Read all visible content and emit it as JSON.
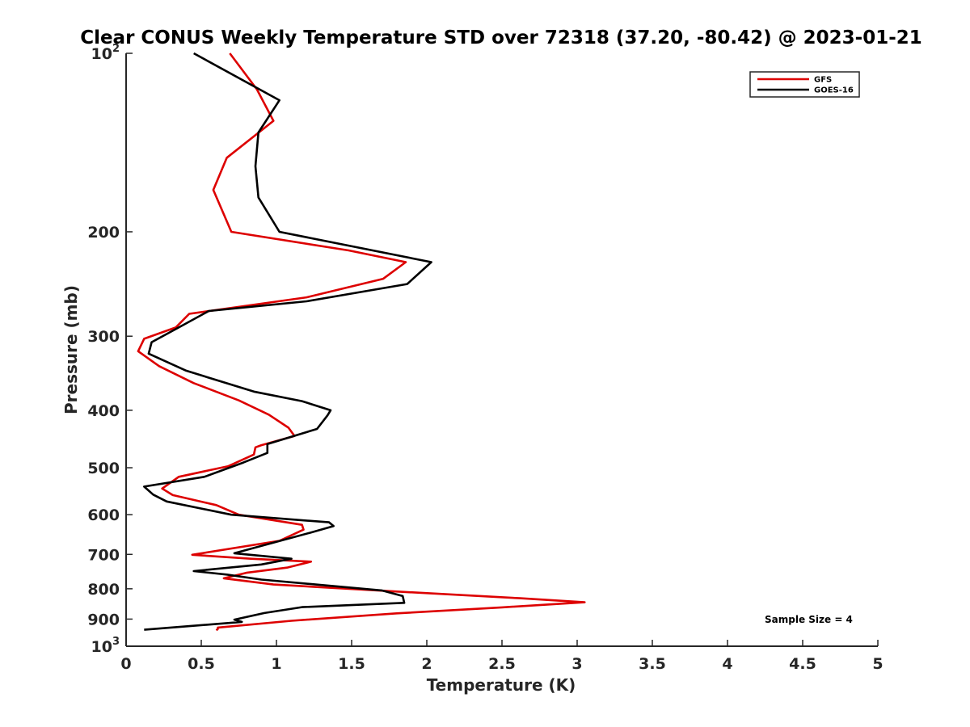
{
  "chart_data": {
    "type": "line",
    "title": "Clear CONUS Weekly Temperature STD over 72318 (37.20, -80.42) @ 2023-01-21",
    "xlabel": "Temperature (K)",
    "ylabel": "Pressure (mb)",
    "xlim": [
      0,
      5
    ],
    "ylim": [
      100,
      1000
    ],
    "yscale": "log",
    "y_reversed": true,
    "xticks": [
      0,
      0.5,
      1,
      1.5,
      2,
      2.5,
      3,
      3.5,
      4,
      4.5,
      5
    ],
    "xtick_labels": [
      "0",
      "0.5",
      "1",
      "1.5",
      "2",
      "2.5",
      "3",
      "3.5",
      "4",
      "4.5",
      "5"
    ],
    "yticks": [
      100,
      200,
      300,
      400,
      500,
      600,
      700,
      800,
      900,
      1000
    ],
    "ytick_labels": [
      {
        "base": "10",
        "exp": "2"
      },
      {
        "base": "200",
        "exp": ""
      },
      {
        "base": "300",
        "exp": ""
      },
      {
        "base": "400",
        "exp": ""
      },
      {
        "base": "500",
        "exp": ""
      },
      {
        "base": "600",
        "exp": ""
      },
      {
        "base": "700",
        "exp": ""
      },
      {
        "base": "800",
        "exp": ""
      },
      {
        "base": "900",
        "exp": ""
      },
      {
        "base": "10",
        "exp": "3"
      }
    ],
    "grid": false,
    "legend_position": "top-right",
    "annotation": "Sample Size = 4",
    "series": [
      {
        "name": "GFS",
        "color": "#dd0000",
        "points": [
          [
            0.69,
            100
          ],
          [
            0.87,
            115
          ],
          [
            0.98,
            130
          ],
          [
            0.67,
            150
          ],
          [
            0.58,
            170
          ],
          [
            0.7,
            200
          ],
          [
            1.48,
            215
          ],
          [
            1.86,
            225
          ],
          [
            1.71,
            240
          ],
          [
            1.2,
            258
          ],
          [
            0.42,
            275
          ],
          [
            0.33,
            290
          ],
          [
            0.12,
            303
          ],
          [
            0.08,
            318
          ],
          [
            0.22,
            337
          ],
          [
            0.45,
            360
          ],
          [
            0.75,
            385
          ],
          [
            0.95,
            407
          ],
          [
            1.08,
            428
          ],
          [
            1.12,
            442
          ],
          [
            0.9,
            458
          ],
          [
            0.86,
            462
          ],
          [
            0.85,
            475
          ],
          [
            0.68,
            497
          ],
          [
            0.35,
            518
          ],
          [
            0.24,
            542
          ],
          [
            0.31,
            556
          ],
          [
            0.6,
            578
          ],
          [
            0.75,
            600
          ],
          [
            1.17,
            624
          ],
          [
            1.18,
            636
          ],
          [
            1.02,
            664
          ],
          [
            0.44,
            701
          ],
          [
            0.83,
            712
          ],
          [
            1.23,
            720
          ],
          [
            1.07,
            737
          ],
          [
            0.8,
            752
          ],
          [
            0.65,
            768
          ],
          [
            0.98,
            787
          ],
          [
            1.85,
            810
          ],
          [
            2.62,
            830
          ],
          [
            3.05,
            843
          ],
          [
            2.5,
            860
          ],
          [
            1.8,
            880
          ],
          [
            1.1,
            906
          ],
          [
            0.61,
            930
          ],
          [
            0.61,
            935
          ],
          [
            0.6,
            940
          ]
        ]
      },
      {
        "name": "GOES-16",
        "color": "#000000",
        "points": [
          [
            0.45,
            100
          ],
          [
            1.02,
            120
          ],
          [
            0.88,
            136
          ],
          [
            0.86,
            155
          ],
          [
            0.88,
            175
          ],
          [
            1.02,
            200
          ],
          [
            2.03,
            225
          ],
          [
            1.87,
            245
          ],
          [
            1.2,
            262
          ],
          [
            0.55,
            272
          ],
          [
            0.35,
            290
          ],
          [
            0.17,
            307
          ],
          [
            0.15,
            321
          ],
          [
            0.4,
            343
          ],
          [
            0.85,
            372
          ],
          [
            1.17,
            386
          ],
          [
            1.36,
            400
          ],
          [
            1.34,
            408
          ],
          [
            1.27,
            430
          ],
          [
            0.94,
            456
          ],
          [
            0.94,
            472
          ],
          [
            0.78,
            490
          ],
          [
            0.52,
            518
          ],
          [
            0.12,
            538
          ],
          [
            0.18,
            555
          ],
          [
            0.27,
            570
          ],
          [
            0.7,
            600
          ],
          [
            1.35,
            618
          ],
          [
            1.38,
            627
          ],
          [
            1.22,
            644
          ],
          [
            0.72,
            697
          ],
          [
            1.1,
            712
          ],
          [
            0.9,
            728
          ],
          [
            0.45,
            747
          ],
          [
            0.67,
            757
          ],
          [
            0.9,
            772
          ],
          [
            1.7,
            805
          ],
          [
            1.84,
            823
          ],
          [
            1.85,
            845
          ],
          [
            1.17,
            859
          ],
          [
            0.92,
            879
          ],
          [
            0.72,
            902
          ],
          [
            0.77,
            910
          ],
          [
            0.12,
            938
          ]
        ]
      }
    ]
  }
}
